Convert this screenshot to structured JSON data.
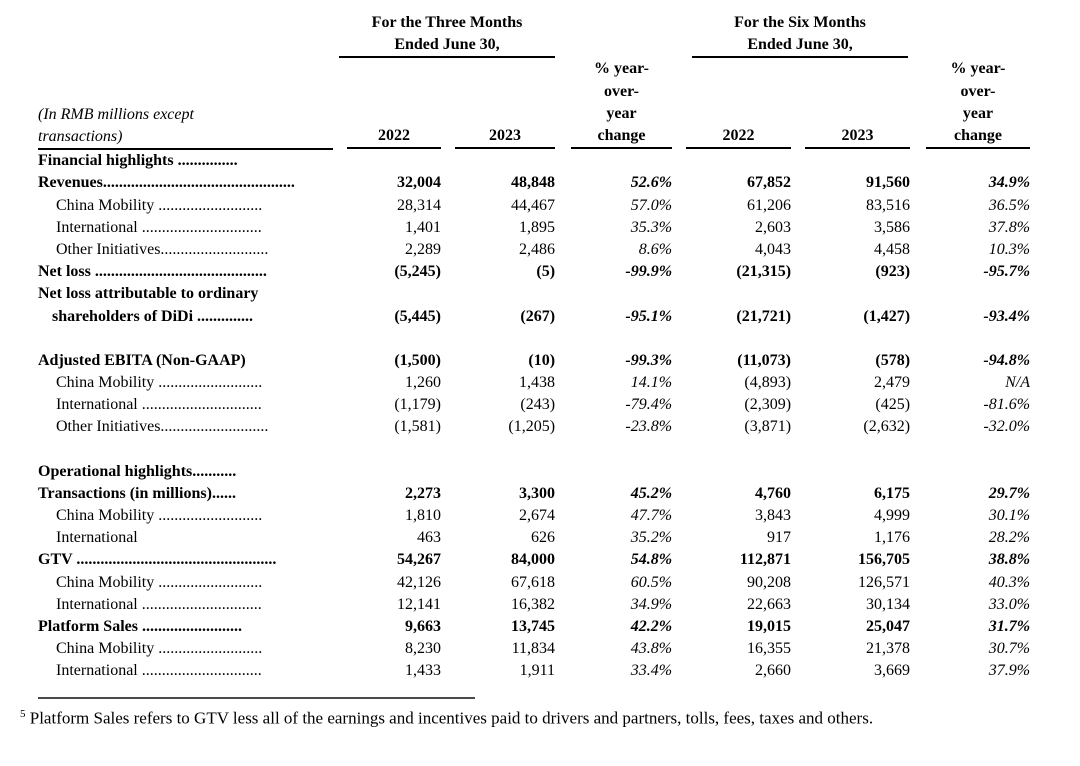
{
  "table": {
    "header": {
      "three_months": {
        "line1": "For the Three Months",
        "line2": "Ended June 30,"
      },
      "six_months": {
        "line1": "For the Six Months",
        "line2": "Ended June 30,"
      },
      "unit_note": {
        "line1": "(In RMB millions except",
        "line2": "transactions)"
      },
      "yoy_lines": [
        "% year-",
        "over-",
        "year",
        "change"
      ],
      "years": {
        "q2_2022": "2022",
        "q2_2023": "2023",
        "h1_2022": "2022",
        "h1_2023": "2023"
      }
    },
    "rows": [
      {
        "type": "section",
        "bold": true,
        "indent": false,
        "label": "Financial highlights ..............."
      },
      {
        "type": "data",
        "bold": true,
        "indent": false,
        "label": "Revenues................................................",
        "values": [
          "32,004",
          "48,848",
          "52.6%",
          "67,852",
          "91,560",
          "34.9%"
        ]
      },
      {
        "type": "data",
        "bold": false,
        "indent": true,
        "label": "China Mobility ..........................",
        "values": [
          "28,314",
          "44,467",
          "57.0%",
          "61,206",
          "83,516",
          "36.5%"
        ]
      },
      {
        "type": "data",
        "bold": false,
        "indent": true,
        "label": "International ..............................",
        "values": [
          "1,401",
          "1,895",
          "35.3%",
          "2,603",
          "3,586",
          "37.8%"
        ]
      },
      {
        "type": "data",
        "bold": false,
        "indent": true,
        "label": "Other Initiatives...........................",
        "values": [
          "2,289",
          "2,486",
          "8.6%",
          "4,043",
          "4,458",
          "10.3%"
        ]
      },
      {
        "type": "data",
        "bold": true,
        "indent": false,
        "label": "Net loss ...........................................",
        "values": [
          "(5,245)",
          "(5)",
          "-99.9%",
          "(21,315)",
          "(923)",
          "-95.7%"
        ]
      },
      {
        "type": "data",
        "bold": true,
        "indent": false,
        "label": "Net loss attributable to ordinary",
        "label2": "shareholders of DiDi ..............",
        "values": [
          "(5,445)",
          "(267)",
          "-95.1%",
          "(21,721)",
          "(1,427)",
          "-93.4%"
        ]
      },
      {
        "type": "spacer"
      },
      {
        "type": "data",
        "bold": true,
        "indent": false,
        "label": "Adjusted EBITA (Non-GAAP)",
        "values": [
          "(1,500)",
          "(10)",
          "-99.3%",
          "(11,073)",
          "(578)",
          "-94.8%"
        ]
      },
      {
        "type": "data",
        "bold": false,
        "indent": true,
        "label": "China Mobility ..........................",
        "values": [
          "1,260",
          "1,438",
          "14.1%",
          "(4,893)",
          "2,479",
          "N/A"
        ]
      },
      {
        "type": "data",
        "bold": false,
        "indent": true,
        "label": "International ..............................",
        "values": [
          "(1,179)",
          "(243)",
          "-79.4%",
          "(2,309)",
          "(425)",
          "-81.6%"
        ]
      },
      {
        "type": "data",
        "bold": false,
        "indent": true,
        "label": "Other Initiatives...........................",
        "values": [
          "(1,581)",
          "(1,205)",
          "-23.8%",
          "(3,871)",
          "(2,632)",
          "-32.0%"
        ]
      },
      {
        "type": "spacer"
      },
      {
        "type": "section",
        "bold": true,
        "indent": false,
        "label": "Operational highlights..........."
      },
      {
        "type": "data",
        "bold": true,
        "indent": false,
        "label": "Transactions (in millions)......",
        "values": [
          "2,273",
          "3,300",
          "45.2%",
          "4,760",
          "6,175",
          "29.7%"
        ]
      },
      {
        "type": "data",
        "bold": false,
        "indent": true,
        "label": "China Mobility ..........................",
        "values": [
          "1,810",
          "2,674",
          "47.7%",
          "3,843",
          "4,999",
          "30.1%"
        ]
      },
      {
        "type": "data",
        "bold": false,
        "indent": true,
        "label": "International",
        "values": [
          "463",
          "626",
          "35.2%",
          "917",
          "1,176",
          "28.2%"
        ]
      },
      {
        "type": "data",
        "bold": true,
        "indent": false,
        "label": "GTV ..................................................",
        "values": [
          "54,267",
          "84,000",
          "54.8%",
          "112,871",
          "156,705",
          "38.8%"
        ]
      },
      {
        "type": "data",
        "bold": false,
        "indent": true,
        "label": "China Mobility ..........................",
        "values": [
          "42,126",
          "67,618",
          "60.5%",
          "90,208",
          "126,571",
          "40.3%"
        ]
      },
      {
        "type": "data",
        "bold": false,
        "indent": true,
        "label": "International ..............................",
        "values": [
          "12,141",
          "16,382",
          "34.9%",
          "22,663",
          "30,134",
          "33.0%"
        ]
      },
      {
        "type": "data",
        "bold": true,
        "indent": false,
        "label": "Platform Sales .........................",
        "values": [
          "9,663",
          "13,745",
          "42.2%",
          "19,015",
          "25,047",
          "31.7%"
        ]
      },
      {
        "type": "data",
        "bold": false,
        "indent": true,
        "label": "China Mobility ..........................",
        "values": [
          "8,230",
          "11,834",
          "43.8%",
          "16,355",
          "21,378",
          "30.7%"
        ]
      },
      {
        "type": "data",
        "bold": false,
        "indent": true,
        "label": "International ..............................",
        "values": [
          "1,433",
          "1,911",
          "33.4%",
          "2,660",
          "3,669",
          "37.9%"
        ]
      }
    ]
  },
  "footnote": {
    "marker": "5",
    "text": "Platform Sales refers to GTV less all of the earnings and incentives paid to drivers and partners, tolls, fees, taxes and others."
  }
}
